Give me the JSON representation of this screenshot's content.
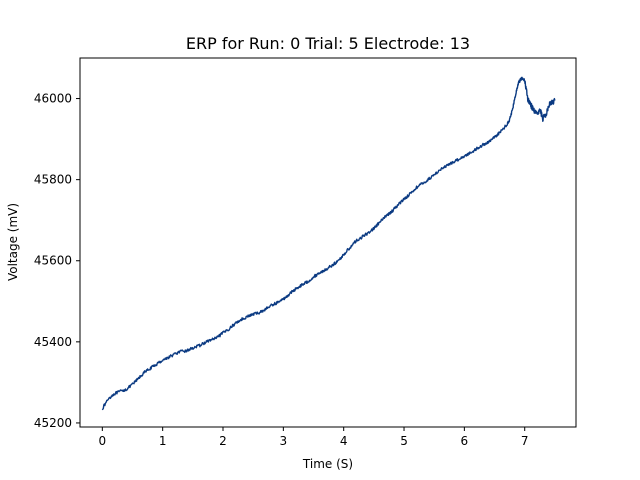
{
  "chart_data": {
    "type": "line",
    "title": "ERP for Run: 0 Trial: 5 Electrode: 13",
    "xlabel": "Time (S)",
    "ylabel": "Voltage (mV)",
    "xlim": [
      -0.37,
      7.85
    ],
    "ylim": [
      45190,
      46100
    ],
    "xticks": [
      0,
      1,
      2,
      3,
      4,
      5,
      6,
      7
    ],
    "yticks": [
      45200,
      45400,
      45600,
      45800,
      46000
    ],
    "grid": false,
    "series": [
      {
        "color": "#0b3a82",
        "x": [
          0,
          0.1,
          0.2,
          0.3,
          0.4,
          0.5,
          0.6,
          0.7,
          0.8,
          0.9,
          1.0,
          1.1,
          1.2,
          1.3,
          1.4,
          1.5,
          1.6,
          1.7,
          1.8,
          1.9,
          2.0,
          2.1,
          2.2,
          2.3,
          2.4,
          2.5,
          2.6,
          2.7,
          2.8,
          2.9,
          3.0,
          3.1,
          3.2,
          3.3,
          3.4,
          3.5,
          3.6,
          3.7,
          3.8,
          3.9,
          4.0,
          4.1,
          4.2,
          4.3,
          4.4,
          4.5,
          4.6,
          4.7,
          4.8,
          4.9,
          5.0,
          5.1,
          5.2,
          5.3,
          5.4,
          5.5,
          5.6,
          5.7,
          5.8,
          5.9,
          6.0,
          6.1,
          6.2,
          6.3,
          6.4,
          6.5,
          6.6,
          6.7,
          6.75,
          6.8,
          6.85,
          6.9,
          6.95,
          7.0,
          7.05,
          7.1,
          7.15,
          7.2,
          7.25,
          7.3,
          7.35,
          7.4,
          7.45,
          7.5
        ],
        "y": [
          45235,
          45260,
          45272,
          45278,
          45283,
          45295,
          45310,
          45325,
          45335,
          45345,
          45355,
          45362,
          45370,
          45376,
          45378,
          45385,
          45390,
          45398,
          45405,
          45410,
          45422,
          45432,
          45445,
          45455,
          45462,
          45468,
          45472,
          45480,
          45490,
          45497,
          45505,
          45518,
          45530,
          45540,
          45548,
          45560,
          45570,
          45578,
          45588,
          45598,
          45615,
          45632,
          45648,
          45658,
          45668,
          45680,
          45695,
          45710,
          45722,
          45738,
          45752,
          45765,
          45780,
          45790,
          45800,
          45812,
          45825,
          45833,
          45842,
          45850,
          45858,
          45866,
          45876,
          45885,
          45893,
          45905,
          45918,
          45935,
          45948,
          45975,
          46010,
          46040,
          46050,
          46045,
          46000,
          45985,
          45970,
          45960,
          45975,
          45950,
          45960,
          45985,
          45990,
          45995
        ]
      }
    ]
  }
}
